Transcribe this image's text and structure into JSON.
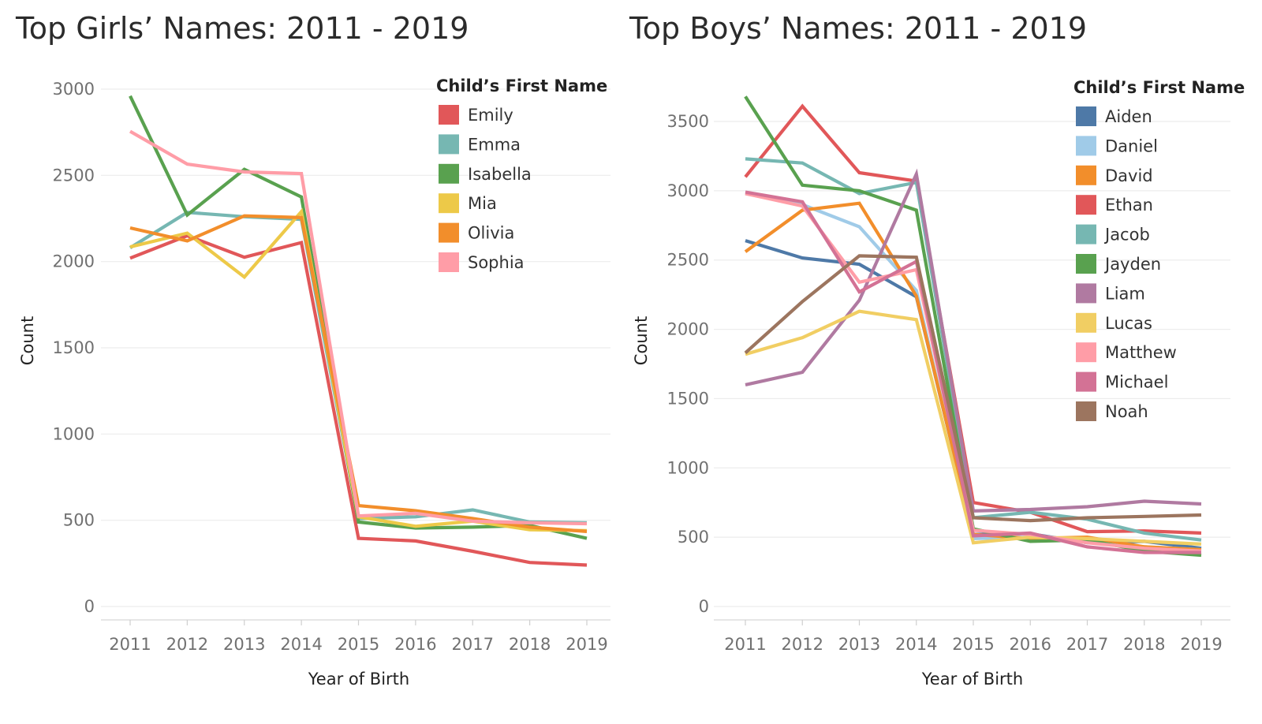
{
  "chart_data": [
    {
      "type": "line",
      "title": "Top Girls’ Names: 2011 - 2019",
      "xlabel": "Year of Birth",
      "ylabel": "Count",
      "x": [
        "2011",
        "2012",
        "2013",
        "2014",
        "2015",
        "2016",
        "2017",
        "2018",
        "2019"
      ],
      "yticks": [
        "0",
        "500",
        "1000",
        "1500",
        "2000",
        "2500",
        "3000"
      ],
      "ylim": [
        0,
        3000
      ],
      "grid": "horizontal",
      "legend_title": "Child’s First Name",
      "legend_position": "top-right",
      "series": [
        {
          "name": "Emily",
          "color": "#e15759",
          "values": [
            2020,
            2150,
            2025,
            2110,
            395,
            380,
            320,
            255,
            240
          ]
        },
        {
          "name": "Emma",
          "color": "#76b7b2",
          "values": [
            2080,
            2285,
            2260,
            2245,
            510,
            520,
            560,
            490,
            485
          ]
        },
        {
          "name": "Isabella",
          "color": "#59a14f",
          "values": [
            2960,
            2270,
            2535,
            2375,
            490,
            455,
            460,
            470,
            395
          ]
        },
        {
          "name": "Mia",
          "color": "#edc948",
          "values": [
            2085,
            2165,
            1910,
            2290,
            520,
            465,
            495,
            445,
            440
          ]
        },
        {
          "name": "Olivia",
          "color": "#f28e2b",
          "values": [
            2195,
            2120,
            2265,
            2255,
            585,
            555,
            510,
            460,
            435
          ]
        },
        {
          "name": "Sophia",
          "color": "#ff9da7",
          "values": [
            2755,
            2565,
            2520,
            2510,
            525,
            540,
            495,
            485,
            480
          ]
        }
      ]
    },
    {
      "type": "line",
      "title": "Top Boys’ Names: 2011 - 2019",
      "xlabel": "Year of Birth",
      "ylabel": "Count",
      "x": [
        "2011",
        "2012",
        "2013",
        "2014",
        "2015",
        "2016",
        "2017",
        "2018",
        "2019"
      ],
      "yticks": [
        "0",
        "500",
        "1000",
        "1500",
        "2000",
        "2500",
        "3000",
        "3500"
      ],
      "ylim": [
        0,
        3500
      ],
      "grid": "horizontal",
      "legend_title": "Child’s First Name",
      "legend_position": "top-right",
      "series": [
        {
          "name": "Aiden",
          "color": "#4e79a7",
          "values": [
            2640,
            2515,
            2470,
            2235,
            520,
            525,
            460,
            470,
            420
          ]
        },
        {
          "name": "Daniel",
          "color": "#a0cbe8",
          "values": [
            2980,
            2900,
            2740,
            2280,
            490,
            500,
            470,
            430,
            410
          ]
        },
        {
          "name": "David",
          "color": "#f28e2b",
          "values": [
            2560,
            2860,
            2910,
            2240,
            520,
            490,
            500,
            430,
            410
          ]
        },
        {
          "name": "Ethan",
          "color": "#e15759",
          "values": [
            3100,
            3610,
            3130,
            3070,
            750,
            680,
            540,
            545,
            530
          ]
        },
        {
          "name": "Jacob",
          "color": "#76b7b2",
          "values": [
            3230,
            3200,
            2980,
            3060,
            640,
            680,
            630,
            530,
            480
          ]
        },
        {
          "name": "Jayden",
          "color": "#59a14f",
          "values": [
            3680,
            3040,
            3000,
            2860,
            560,
            470,
            480,
            400,
            370
          ]
        },
        {
          "name": "Liam",
          "color": "#b07aa1",
          "values": [
            1600,
            1690,
            2210,
            3120,
            690,
            700,
            720,
            760,
            740
          ]
        },
        {
          "name": "Lucas",
          "color": "#f1ce63",
          "values": [
            1820,
            1940,
            2130,
            2070,
            460,
            500,
            490,
            470,
            450
          ]
        },
        {
          "name": "Matthew",
          "color": "#ff9da7",
          "values": [
            2980,
            2890,
            2340,
            2430,
            550,
            520,
            460,
            420,
            400
          ]
        },
        {
          "name": "Michael",
          "color": "#d37295",
          "values": [
            2990,
            2920,
            2270,
            2490,
            510,
            530,
            430,
            390,
            390
          ]
        },
        {
          "name": "Noah",
          "color": "#9c755f",
          "values": [
            1830,
            2200,
            2530,
            2520,
            640,
            620,
            640,
            650,
            660
          ]
        }
      ]
    }
  ]
}
